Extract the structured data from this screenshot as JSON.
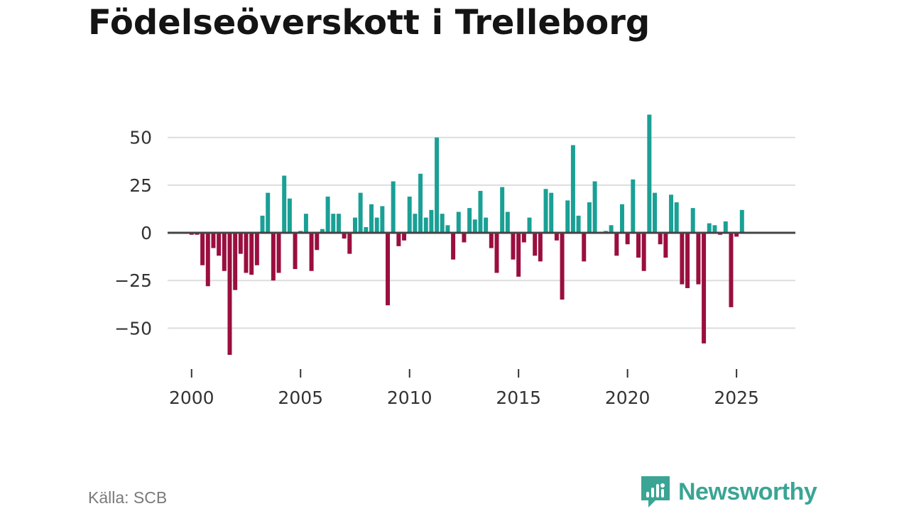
{
  "chart_data": {
    "type": "bar",
    "title": "Födelseöverskott i Trelleborg",
    "xlabel": "",
    "ylabel": "",
    "x_start": 2000.0,
    "x_step": 0.25,
    "xlim": [
      1998.9,
      2027.7
    ],
    "ylim": [
      -64,
      70
    ],
    "yticks": [
      50,
      25,
      0,
      -25,
      -50
    ],
    "ytick_labels": [
      "50",
      "25",
      "0",
      "−25",
      "−50"
    ],
    "xticks": [
      2000,
      2005,
      2010,
      2015,
      2020,
      2025
    ],
    "xtick_labels": [
      "2000",
      "2005",
      "2010",
      "2015",
      "2020",
      "2025"
    ],
    "grid": true,
    "colors": {
      "positive": "#1aa095",
      "negative": "#9a0f3f",
      "grid": "#dddddd",
      "zero": "#444444"
    },
    "values": [
      -1,
      -1,
      -17,
      -28,
      -8,
      -12,
      -20,
      -64,
      -30,
      -11,
      -21,
      -22,
      -17,
      9,
      21,
      -25,
      -21,
      30,
      18,
      -19,
      1,
      10,
      -20,
      -9,
      2,
      19,
      10,
      10,
      -3,
      -11,
      8,
      21,
      3,
      15,
      8,
      14,
      -38,
      27,
      -7,
      -4,
      19,
      10,
      31,
      8,
      12,
      50,
      10,
      4,
      -14,
      11,
      -5,
      13,
      7,
      22,
      8,
      -8,
      -21,
      24,
      11,
      -14,
      -23,
      -5,
      8,
      -12,
      -15,
      23,
      21,
      -4,
      -35,
      17,
      46,
      9,
      -15,
      16,
      27,
      0,
      1,
      4,
      -12,
      15,
      -6,
      28,
      -13,
      -20,
      62,
      21,
      -6,
      -13,
      20,
      16,
      -27,
      -29,
      13,
      -27,
      -58,
      5,
      4,
      -1,
      6,
      -39,
      -2,
      12
    ]
  },
  "source": "Källa: SCB",
  "brand": {
    "name": "Newsworthy",
    "icon": "newsworthy-logo-icon",
    "color": "#3aa594"
  }
}
